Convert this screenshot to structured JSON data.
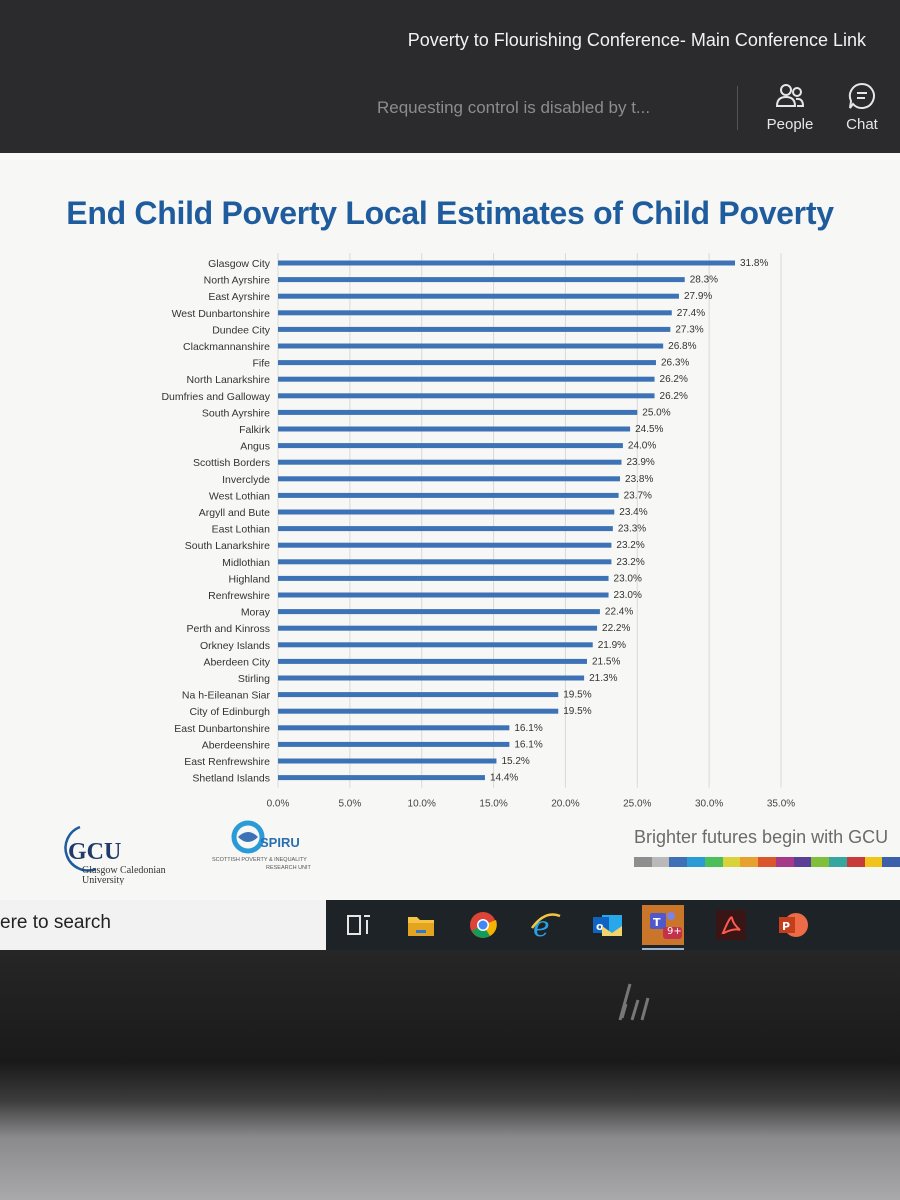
{
  "window": {
    "meeting_title": "Poverty to Flourishing Conference- Main Conference Link",
    "control_message": "Requesting control is disabled by t...",
    "people_label": "People",
    "chat_label": "Chat"
  },
  "slide": {
    "title": "End Child Poverty Local Estimates of Child Poverty",
    "tagline": "Brighter futures begin with GCU",
    "gcu_logo_text": "GCU Glasgow Caledonian University",
    "spiru_logo_text": "SPIRU SCOTTISH POVERTY & INEQUALITY RESEARCH UNIT",
    "strip_colors": [
      "#8e8e8e",
      "#b9b9b9",
      "#3f6fb5",
      "#2a9bd6",
      "#4cbf5a",
      "#d9d23a",
      "#e7a12e",
      "#d9572b",
      "#a63a8a",
      "#5b3f97",
      "#7fbf3a",
      "#35a7a0",
      "#c93b3b",
      "#f0c419",
      "#3b5fa8"
    ]
  },
  "chart_data": {
    "type": "bar",
    "orientation": "horizontal",
    "categories": [
      "Glasgow City",
      "North Ayrshire",
      "East Ayrshire",
      "West Dunbartonshire",
      "Dundee City",
      "Clackmannanshire",
      "Fife",
      "North Lanarkshire",
      "Dumfries and Galloway",
      "South Ayrshire",
      "Falkirk",
      "Angus",
      "Scottish Borders",
      "Inverclyde",
      "West Lothian",
      "Argyll and Bute",
      "East Lothian",
      "South Lanarkshire",
      "Midlothian",
      "Highland",
      "Renfrewshire",
      "Moray",
      "Perth and Kinross",
      "Orkney Islands",
      "Aberdeen City",
      "Stirling",
      "Na h-Eileanan Siar",
      "City of Edinburgh",
      "East Dunbartonshire",
      "Aberdeenshire",
      "East Renfrewshire",
      "Shetland Islands"
    ],
    "values": [
      31.8,
      28.3,
      27.9,
      27.4,
      27.3,
      26.8,
      26.3,
      26.2,
      26.2,
      25.0,
      24.5,
      24.0,
      23.9,
      23.8,
      23.7,
      23.4,
      23.3,
      23.2,
      23.2,
      23.0,
      23.0,
      22.4,
      22.2,
      21.9,
      21.5,
      21.3,
      19.5,
      19.5,
      16.1,
      16.1,
      15.2,
      14.4
    ],
    "data_labels": [
      "31.8%",
      "28.3%",
      "27.9%",
      "27.4%",
      "27.3%",
      "26.8%",
      "26.3%",
      "26.2%",
      "26.2%",
      "25.0%",
      "24.5%",
      "24.0%",
      "23.9%",
      "23.8%",
      "23.7%",
      "23.4%",
      "23.3%",
      "23.2%",
      "23.2%",
      "23.0%",
      "23.0%",
      "22.4%",
      "22.2%",
      "21.9%",
      "21.5%",
      "21.3%",
      "19.5%",
      "19.5%",
      "16.1%",
      "16.1%",
      "15.2%",
      "14.4%"
    ],
    "x_ticks": [
      "0.0%",
      "5.0%",
      "10.0%",
      "15.0%",
      "20.0%",
      "25.0%",
      "30.0%",
      "35.0%"
    ],
    "xlim": [
      0,
      35
    ],
    "grid": true,
    "bar_color": "#3d73b6"
  },
  "taskbar": {
    "search_text": "ere to search",
    "icons": [
      "task-view-icon",
      "file-explorer-icon",
      "chrome-icon",
      "internet-explorer-icon",
      "outlook-icon",
      "teams-icon",
      "acrobat-icon",
      "powerpoint-icon"
    ],
    "teams_badge": "9+"
  }
}
